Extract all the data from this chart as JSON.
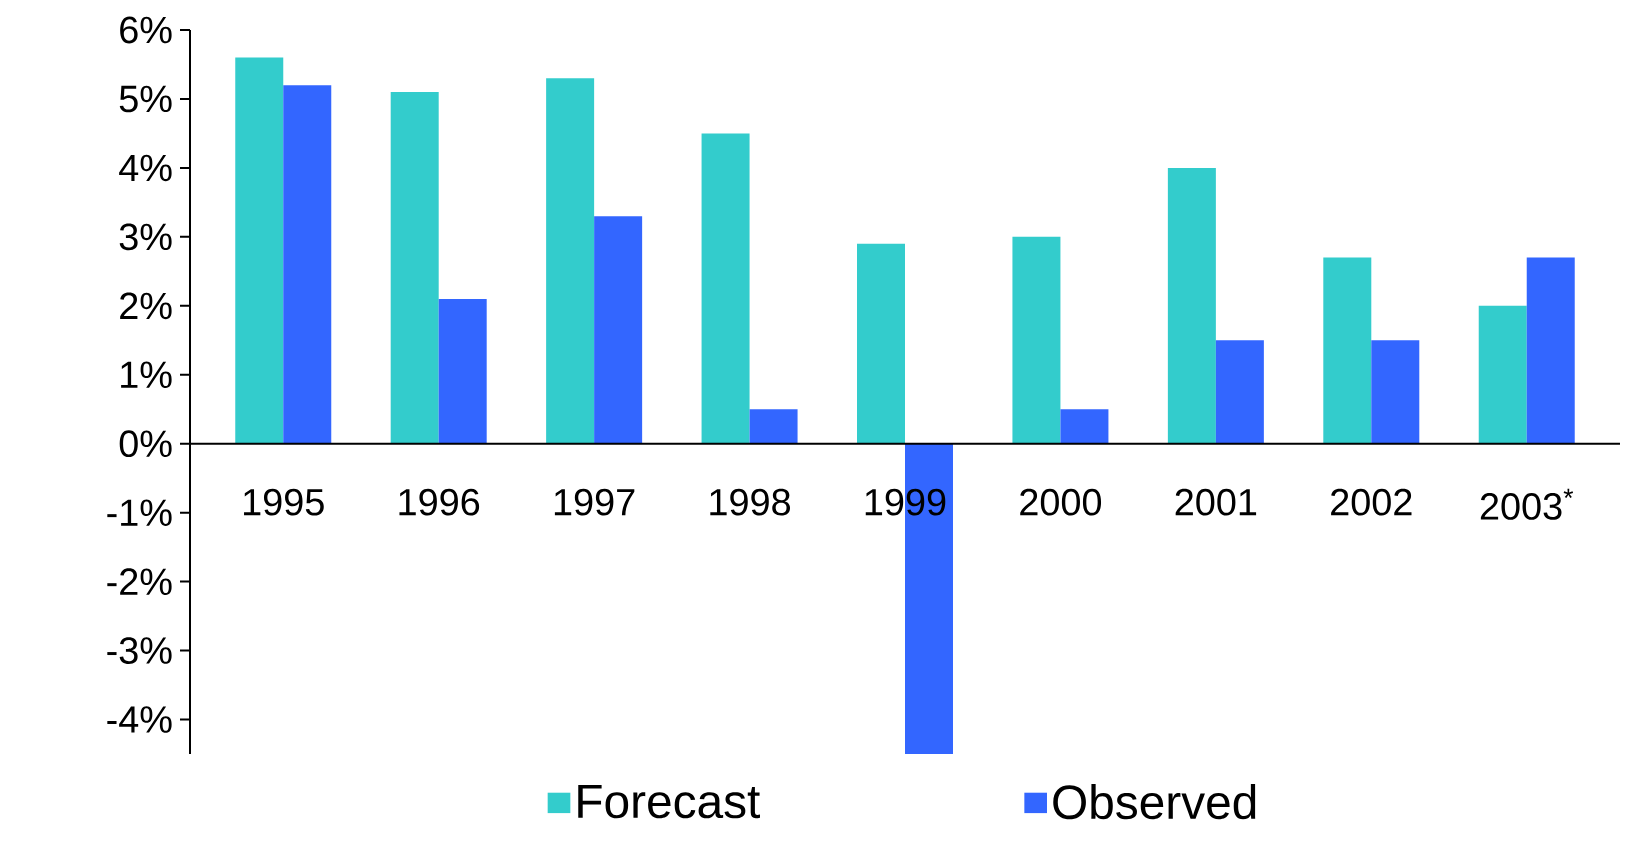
{
  "chart_data": {
    "type": "bar",
    "categories": [
      "1995",
      "1996",
      "1997",
      "1998",
      "1999",
      "2000",
      "2001",
      "2002",
      "2003$^{*}$"
    ],
    "series": [
      {
        "name": "Forecast",
        "color": "#33cccc",
        "values": [
          5.6,
          5.1,
          5.3,
          4.5,
          2.9,
          3.0,
          4.0,
          2.7,
          2.0
        ]
      },
      {
        "name": "Observed",
        "color": "#3366ff",
        "values": [
          5.2,
          2.1,
          3.3,
          0.5,
          -4.5,
          0.5,
          1.5,
          1.5,
          2.7
        ]
      }
    ],
    "ylim": [
      -4.5,
      6
    ],
    "yticks": [
      {
        "value": -4,
        "label": "-4%"
      },
      {
        "value": -3,
        "label": "-3%"
      },
      {
        "value": -2,
        "label": "-2%"
      },
      {
        "value": -1,
        "label": "-1%"
      },
      {
        "value": 0,
        "label": "0%"
      },
      {
        "value": 1,
        "label": "1%"
      },
      {
        "value": 2,
        "label": "2%"
      },
      {
        "value": 3,
        "label": "3%"
      },
      {
        "value": 4,
        "label": "4%"
      },
      {
        "value": 5,
        "label": "5%"
      },
      {
        "value": 6,
        "label": "6%"
      }
    ],
    "grid": false,
    "legend": "bottom"
  }
}
